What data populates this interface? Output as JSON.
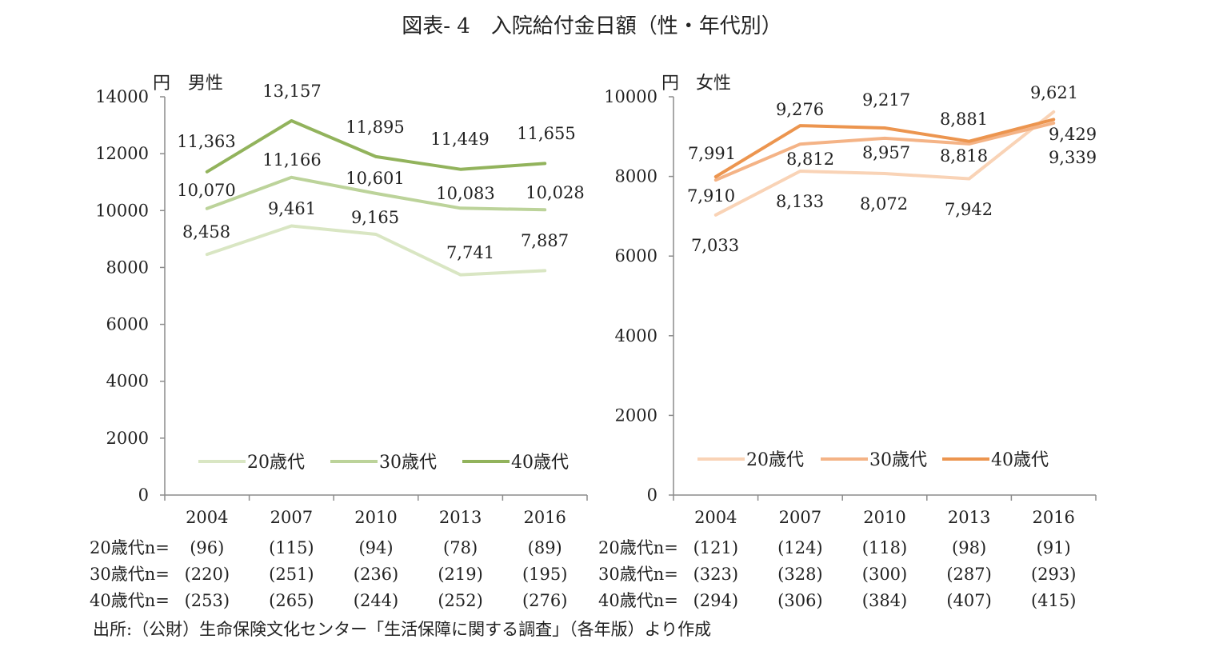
{
  "title": "図表- 4　入院給付金日額（性・年代別）",
  "source": "出所:（公財）生命保険文化センター「生活保障に関する調査」（各年版）より作成",
  "colors": {
    "male_20": "#d9e6c3",
    "male_30": "#bcd39a",
    "male_40": "#92b35c",
    "female_20": "#f9d3b6",
    "female_30": "#f4b386",
    "female_40": "#ec954f",
    "axis": "#8c8c8c"
  },
  "chart_data": [
    {
      "type": "line",
      "panel": "male",
      "unit_label": "円",
      "subtitle": "男性",
      "categories": [
        "2004",
        "2007",
        "2010",
        "2013",
        "2016"
      ],
      "ylim": [
        0,
        14000
      ],
      "yticks": [
        "0",
        "2000",
        "4000",
        "6000",
        "8000",
        "10000",
        "12000",
        "14000"
      ],
      "grid": false,
      "legend_position": "bottom-inside",
      "series": [
        {
          "name": "20歳代",
          "values": [
            8458,
            9461,
            9165,
            7741,
            7887
          ],
          "labels": [
            "8,458",
            "9,461",
            "9,165",
            "7,741",
            "7,887"
          ]
        },
        {
          "name": "30歳代",
          "values": [
            10070,
            11166,
            10601,
            10083,
            10028
          ],
          "labels": [
            "10,070",
            "11,166",
            "10,601",
            "10,083",
            "10,028"
          ]
        },
        {
          "name": "40歳代",
          "values": [
            11363,
            13157,
            11895,
            11449,
            11655
          ],
          "labels": [
            "11,363",
            "13,157",
            "11,895",
            "11,449",
            "11,655"
          ]
        }
      ],
      "n_rows": [
        {
          "label": "20歳代n=",
          "values": [
            "(96)",
            "(115)",
            "(94)",
            "(78)",
            "(89)"
          ]
        },
        {
          "label": "30歳代n=",
          "values": [
            "(220)",
            "(251)",
            "(236)",
            "(219)",
            "(195)"
          ]
        },
        {
          "label": "40歳代n=",
          "values": [
            "(253)",
            "(265)",
            "(244)",
            "(252)",
            "(276)"
          ]
        }
      ]
    },
    {
      "type": "line",
      "panel": "female",
      "unit_label": "円",
      "subtitle": "女性",
      "categories": [
        "2004",
        "2007",
        "2010",
        "2013",
        "2016"
      ],
      "ylim": [
        0,
        10000
      ],
      "yticks": [
        "0",
        "2000",
        "4000",
        "6000",
        "8000",
        "10000"
      ],
      "grid": false,
      "legend_position": "bottom-inside",
      "series": [
        {
          "name": "20歳代",
          "values": [
            7033,
            8133,
            8072,
            7942,
            9621
          ],
          "labels": [
            "7,033",
            "8,133",
            "8,072",
            "7,942",
            "9,621"
          ]
        },
        {
          "name": "30歳代",
          "values": [
            7910,
            8812,
            8957,
            8818,
            9339
          ],
          "labels": [
            "7,910",
            "8,812",
            "8,957",
            "8,818",
            "9,339"
          ]
        },
        {
          "name": "40歳代",
          "values": [
            7991,
            9276,
            9217,
            8881,
            9429
          ],
          "labels": [
            "7,991",
            "9,276",
            "9,217",
            "8,881",
            "9,429"
          ]
        }
      ],
      "n_rows": [
        {
          "label": "20歳代n=",
          "values": [
            "(121)",
            "(124)",
            "(118)",
            "(98)",
            "(91)"
          ]
        },
        {
          "label": "30歳代n=",
          "values": [
            "(323)",
            "(328)",
            "(300)",
            "(287)",
            "(293)"
          ]
        },
        {
          "label": "40歳代n=",
          "values": [
            "(294)",
            "(306)",
            "(384)",
            "(407)",
            "(415)"
          ]
        }
      ]
    }
  ]
}
